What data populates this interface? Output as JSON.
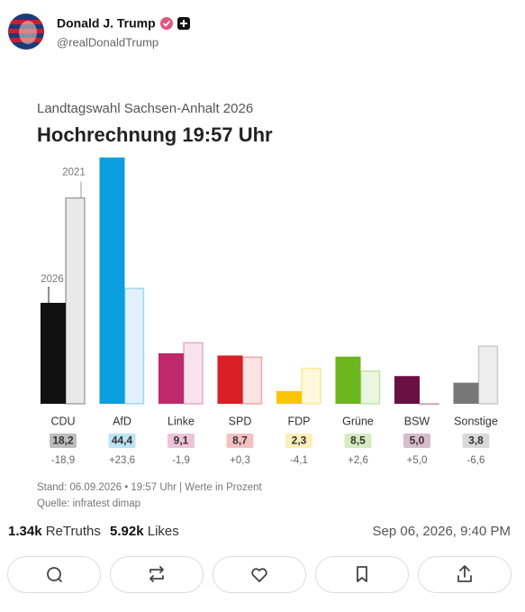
{
  "post": {
    "author": {
      "name": "Donald J. Trump",
      "handle": "@realDonaldTrump"
    },
    "stats": {
      "retruths": {
        "count": "1.34k",
        "label": "ReTruths"
      },
      "likes": {
        "count": "5.92k",
        "label": "Likes"
      }
    },
    "timestamp": "Sep 06, 2026, 9:40 PM"
  },
  "chart_data": {
    "type": "bar",
    "subtitle": "Landtagswahl Sachsen-Anhalt 2026",
    "title": "Hochrechnung 19:57 Uhr",
    "categories": [
      "CDU",
      "AfD",
      "Linke",
      "SPD",
      "FDP",
      "Grüne",
      "BSW",
      "Sonstige"
    ],
    "series": [
      {
        "name": "2026",
        "colors": [
          "#111111",
          "#0b9fdf",
          "#c0286c",
          "#d81f26",
          "#f9c600",
          "#6cb61e",
          "#6a1142",
          "#777777"
        ],
        "values": [
          18.2,
          44.4,
          9.1,
          8.7,
          2.3,
          8.5,
          5.0,
          3.8
        ],
        "value_labels": [
          "18,2",
          "44,4",
          "9,1",
          "8,7",
          "2,3",
          "8,5",
          "5,0",
          "3,8"
        ]
      },
      {
        "name": "2021",
        "colors": [
          "#e9e9e9",
          "#dff2fb",
          "#f8e3ed",
          "#fae3e3",
          "#fff8dc",
          "#ebf6df",
          "#f3e4ec",
          "#ededed"
        ],
        "values": [
          37.1,
          20.8,
          11.0,
          8.4,
          6.4,
          5.9,
          0,
          10.4
        ]
      }
    ],
    "differences": {
      "values": [
        -18.9,
        23.6,
        -1.9,
        0.3,
        -4.1,
        2.6,
        5.0,
        -6.6
      ],
      "value_labels": [
        "-18,9",
        "+23,6",
        "-1,9",
        "+0,3",
        "-4,1",
        "+2,6",
        "+5,0",
        "-6,6"
      ]
    },
    "ylim": [
      0,
      45
    ],
    "notes": [
      "Stand: 06.09.2026 • 19:57 Uhr | Werte in Prozent",
      "Quelle: infratest dimap"
    ]
  }
}
